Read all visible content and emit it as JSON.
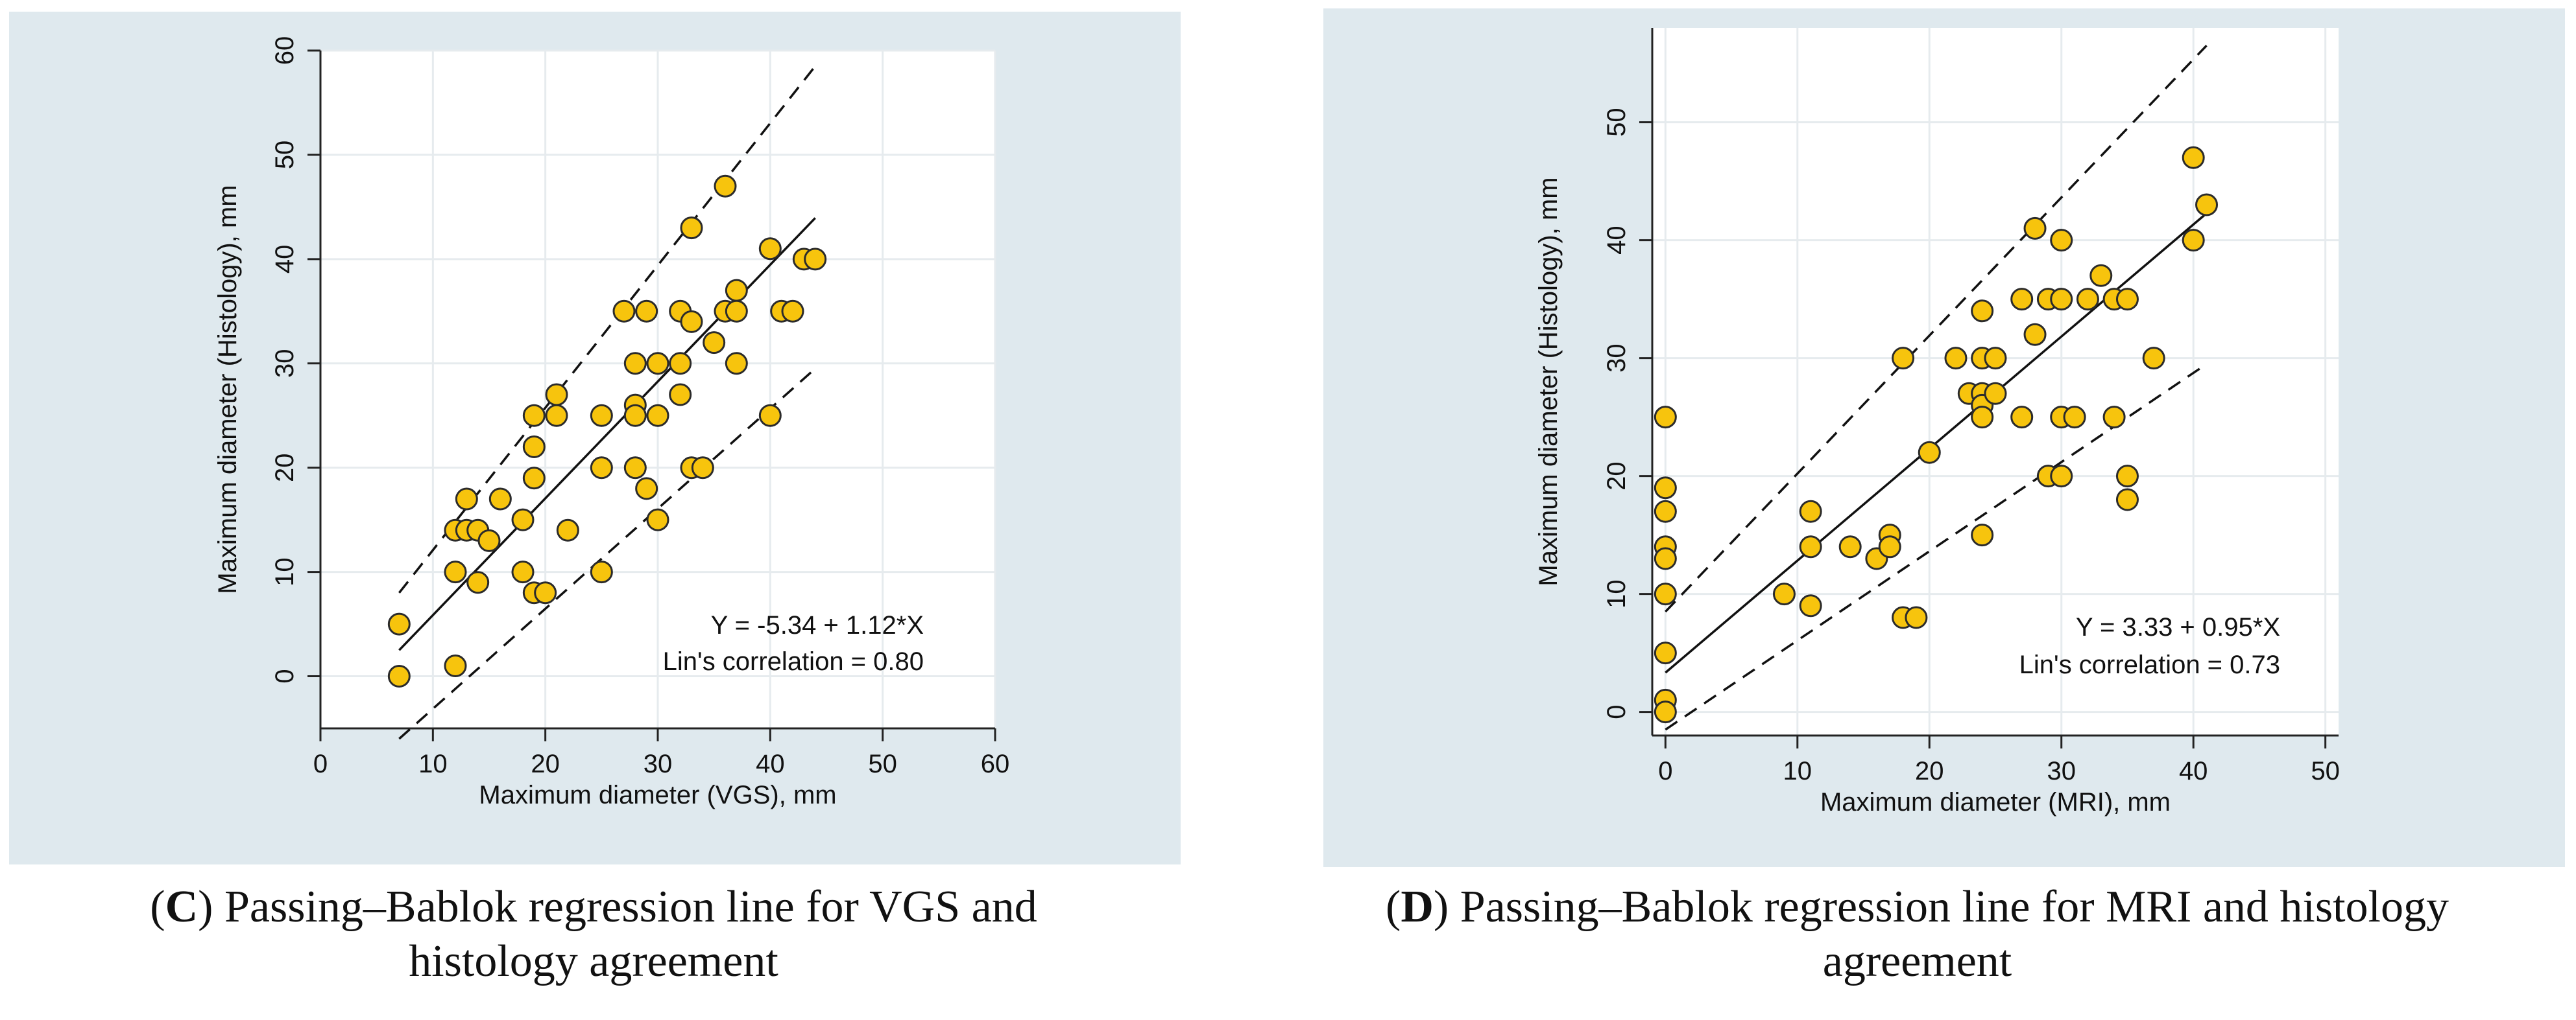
{
  "chart_data": [
    {
      "id": "C",
      "type": "scatter",
      "xlabel": "Maximum diameter (VGS), mm",
      "ylabel": "Maximum diameter (Histology), mm",
      "xlim": [
        0,
        60
      ],
      "ylim": [
        -5,
        60
      ],
      "xticks": [
        0,
        10,
        20,
        30,
        40,
        50,
        60
      ],
      "yticks": [
        0,
        10,
        20,
        30,
        40,
        50,
        60
      ],
      "equation": "Y = -5.34 + 1.12*X",
      "correlation": "Lin's correlation = 0.80",
      "regression": {
        "intercept": -5.34,
        "slope": 1.12,
        "x_range": [
          7,
          44
        ]
      },
      "ci_lower": {
        "x1": 7,
        "y1": -6,
        "x2": 44,
        "y2": 29.5
      },
      "ci_upper": {
        "x1": 7,
        "y1": 8,
        "x2": 44,
        "y2": 58.5
      },
      "points": [
        [
          7,
          5
        ],
        [
          7,
          0
        ],
        [
          12,
          1
        ],
        [
          12,
          10
        ],
        [
          12,
          14
        ],
        [
          13,
          17
        ],
        [
          13,
          14
        ],
        [
          14,
          14
        ],
        [
          14,
          9
        ],
        [
          15,
          13
        ],
        [
          16,
          17
        ],
        [
          18,
          10
        ],
        [
          18,
          15
        ],
        [
          19,
          8
        ],
        [
          19,
          19
        ],
        [
          19,
          22
        ],
        [
          19,
          25
        ],
        [
          20,
          8
        ],
        [
          21,
          25
        ],
        [
          21,
          27
        ],
        [
          22,
          14
        ],
        [
          25,
          10
        ],
        [
          25,
          20
        ],
        [
          25,
          25
        ],
        [
          27,
          35
        ],
        [
          28,
          30
        ],
        [
          28,
          26
        ],
        [
          28,
          25
        ],
        [
          28,
          20
        ],
        [
          29,
          35
        ],
        [
          29,
          18
        ],
        [
          30,
          15
        ],
        [
          30,
          30
        ],
        [
          30,
          25
        ],
        [
          32,
          35
        ],
        [
          32,
          30
        ],
        [
          32,
          27
        ],
        [
          33,
          43
        ],
        [
          33,
          34
        ],
        [
          33,
          20
        ],
        [
          34,
          20
        ],
        [
          35,
          32
        ],
        [
          36,
          35
        ],
        [
          36,
          47
        ],
        [
          37,
          37
        ],
        [
          37,
          35
        ],
        [
          37,
          30
        ],
        [
          40,
          41
        ],
        [
          40,
          25
        ],
        [
          41,
          35
        ],
        [
          42,
          35
        ],
        [
          43,
          40
        ],
        [
          44,
          40
        ]
      ]
    },
    {
      "id": "D",
      "type": "scatter",
      "xlabel": "Maximum diameter (MRI), mm",
      "ylabel": "Maximum diameter (Histology), mm",
      "xlim": [
        -1,
        51
      ],
      "ylim": [
        -2,
        58
      ],
      "xticks": [
        0,
        10,
        20,
        30,
        40,
        50
      ],
      "yticks": [
        0,
        10,
        20,
        30,
        40,
        50
      ],
      "equation": "Y = 3.33 + 0.95*X",
      "correlation": "Lin's correlation = 0.73",
      "regression": {
        "intercept": 3.33,
        "slope": 0.95,
        "x_range": [
          0,
          41
        ]
      },
      "ci_lower": {
        "x1": 0,
        "y1": -1.5,
        "x2": 41,
        "y2": 29.5
      },
      "ci_upper": {
        "x1": 0,
        "y1": 8.5,
        "x2": 41,
        "y2": 56.5
      },
      "points": [
        [
          0,
          25
        ],
        [
          0,
          19
        ],
        [
          0,
          17
        ],
        [
          0,
          14
        ],
        [
          0,
          13
        ],
        [
          0,
          10
        ],
        [
          0,
          5
        ],
        [
          0,
          1
        ],
        [
          0,
          0
        ],
        [
          9,
          10
        ],
        [
          11,
          17
        ],
        [
          11,
          14
        ],
        [
          11,
          9
        ],
        [
          14,
          14
        ],
        [
          16,
          13
        ],
        [
          17,
          15
        ],
        [
          17,
          14
        ],
        [
          18,
          30
        ],
        [
          18,
          8
        ],
        [
          19,
          8
        ],
        [
          20,
          22
        ],
        [
          22,
          30
        ],
        [
          23,
          27
        ],
        [
          24,
          34
        ],
        [
          24,
          30
        ],
        [
          24,
          27
        ],
        [
          24,
          26
        ],
        [
          24,
          25
        ],
        [
          24,
          15
        ],
        [
          25,
          30
        ],
        [
          25,
          27
        ],
        [
          27,
          35
        ],
        [
          27,
          25
        ],
        [
          28,
          41
        ],
        [
          28,
          32
        ],
        [
          29,
          35
        ],
        [
          29,
          20
        ],
        [
          30,
          40
        ],
        [
          30,
          35
        ],
        [
          30,
          25
        ],
        [
          30,
          20
        ],
        [
          31,
          25
        ],
        [
          32,
          35
        ],
        [
          33,
          37
        ],
        [
          34,
          35
        ],
        [
          34,
          25
        ],
        [
          35,
          35
        ],
        [
          35,
          20
        ],
        [
          35,
          18
        ],
        [
          37,
          30
        ],
        [
          40,
          47
        ],
        [
          40,
          40
        ],
        [
          41,
          43
        ]
      ]
    }
  ],
  "captions": [
    {
      "letter": "C",
      "open": "(",
      "close": ")",
      "line1": " Passing–Bablok regression line for VGS and",
      "line2": "histology agreement"
    },
    {
      "letter": "D",
      "open": "(",
      "close": ")",
      "line1": " Passing–Bablok regression line for MRI and histology",
      "line2": "agreement"
    }
  ],
  "colors": {
    "panel_bg": "#dfe9ee",
    "plot_bg": "#ffffff",
    "marker_fill": "#f7c40d",
    "marker_edge": "#2b2b2b",
    "grid": "#e6ebee",
    "line": "#111111"
  }
}
